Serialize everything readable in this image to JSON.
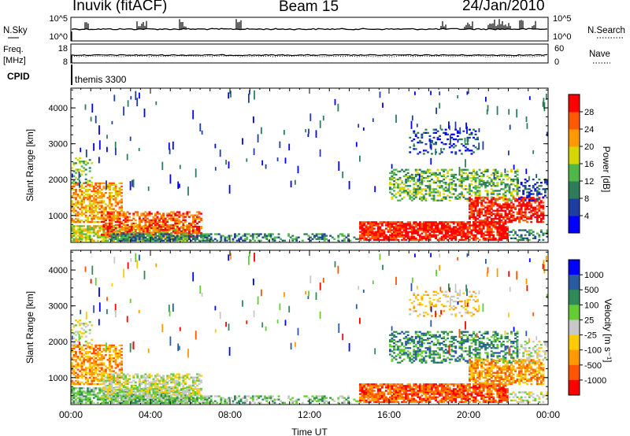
{
  "header": {
    "station": "Inuvik (fitACF)",
    "beam": "Beam 15",
    "date": "24/Jan/2010"
  },
  "strip_panels": {
    "nsky_label": "N.Sky",
    "nsearch_label": "N.Search",
    "nsky_ticks": [
      "10^5",
      "10^0"
    ],
    "nsearch_ticks": [
      "10^5",
      "10^0"
    ],
    "freq_label": "Freq.",
    "freq_unit": "[MHz]",
    "freq_ticks": [
      "18",
      "8"
    ],
    "nave_label": "Nave",
    "nave_ticks": [
      "60",
      "0"
    ],
    "cpid_label": "CPID",
    "cpid_value": "themis 3300"
  },
  "chart_data": [
    {
      "type": "heatmap",
      "name": "power",
      "ylabel": "Slant Range [km]",
      "y_ticks": [
        1000,
        2000,
        3000,
        4000
      ],
      "ylim": [
        250,
        4550
      ],
      "x_ticks": [
        "00:00",
        "04:00",
        "08:00",
        "12:00",
        "16:00",
        "20:00",
        "00:00"
      ],
      "xlim_hours": [
        0,
        24
      ],
      "colorbar_label": "Power [dB]",
      "colorbar_ticks": [
        "4",
        "8",
        "12",
        "16",
        "20",
        "24",
        "28"
      ],
      "colorbar_colors": [
        "#0000ff",
        "#1f3fa0",
        "#2e7d5a",
        "#4fb848",
        "#d7d700",
        "#ff9900",
        "#ff5a00",
        "#ff0000"
      ]
    },
    {
      "type": "heatmap",
      "name": "velocity",
      "ylabel": "Slant Range [km]",
      "y_ticks": [
        1000,
        2000,
        3000,
        4000
      ],
      "ylim": [
        250,
        4550
      ],
      "x_ticks": [
        "00:00",
        "04:00",
        "08:00",
        "12:00",
        "16:00",
        "20:00",
        "00:00"
      ],
      "xlim_hours": [
        0,
        24
      ],
      "xlabel": "Time UT",
      "colorbar_label": "Velocity [m s⁻¹]",
      "colorbar_ticks": [
        "1000",
        "500",
        "100",
        "25",
        "-25",
        "-100",
        "-500",
        "-1000"
      ],
      "colorbar_colors": [
        "#0000ff",
        "#2a5aa0",
        "#2e8b57",
        "#66cc33",
        "#c8c8c8",
        "#ffcc00",
        "#ff9900",
        "#ff5500",
        "#ff0000"
      ]
    }
  ]
}
